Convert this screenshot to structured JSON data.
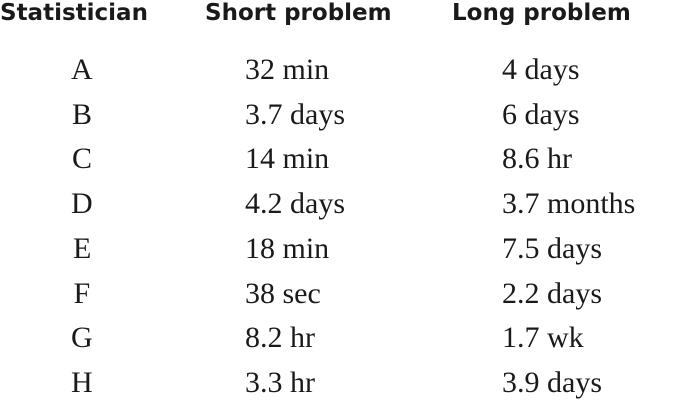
{
  "table": {
    "header": [
      "Statistician",
      "Short problem",
      "Long problem"
    ],
    "rows": [
      [
        "A",
        "32 min",
        "4 days"
      ],
      [
        "B",
        "3.7 days",
        "6 days"
      ],
      [
        "C",
        "14 min",
        "8.6 hr"
      ],
      [
        "D",
        "4.2 days",
        "3.7 months"
      ],
      [
        "E",
        "18 min",
        "7.5 days"
      ],
      [
        "F",
        "38 sec",
        "2.2 days"
      ],
      [
        "G",
        "8.2 hr",
        "1.7 wk"
      ],
      [
        "H",
        "3.3 hr",
        "3.9 days"
      ]
    ]
  }
}
